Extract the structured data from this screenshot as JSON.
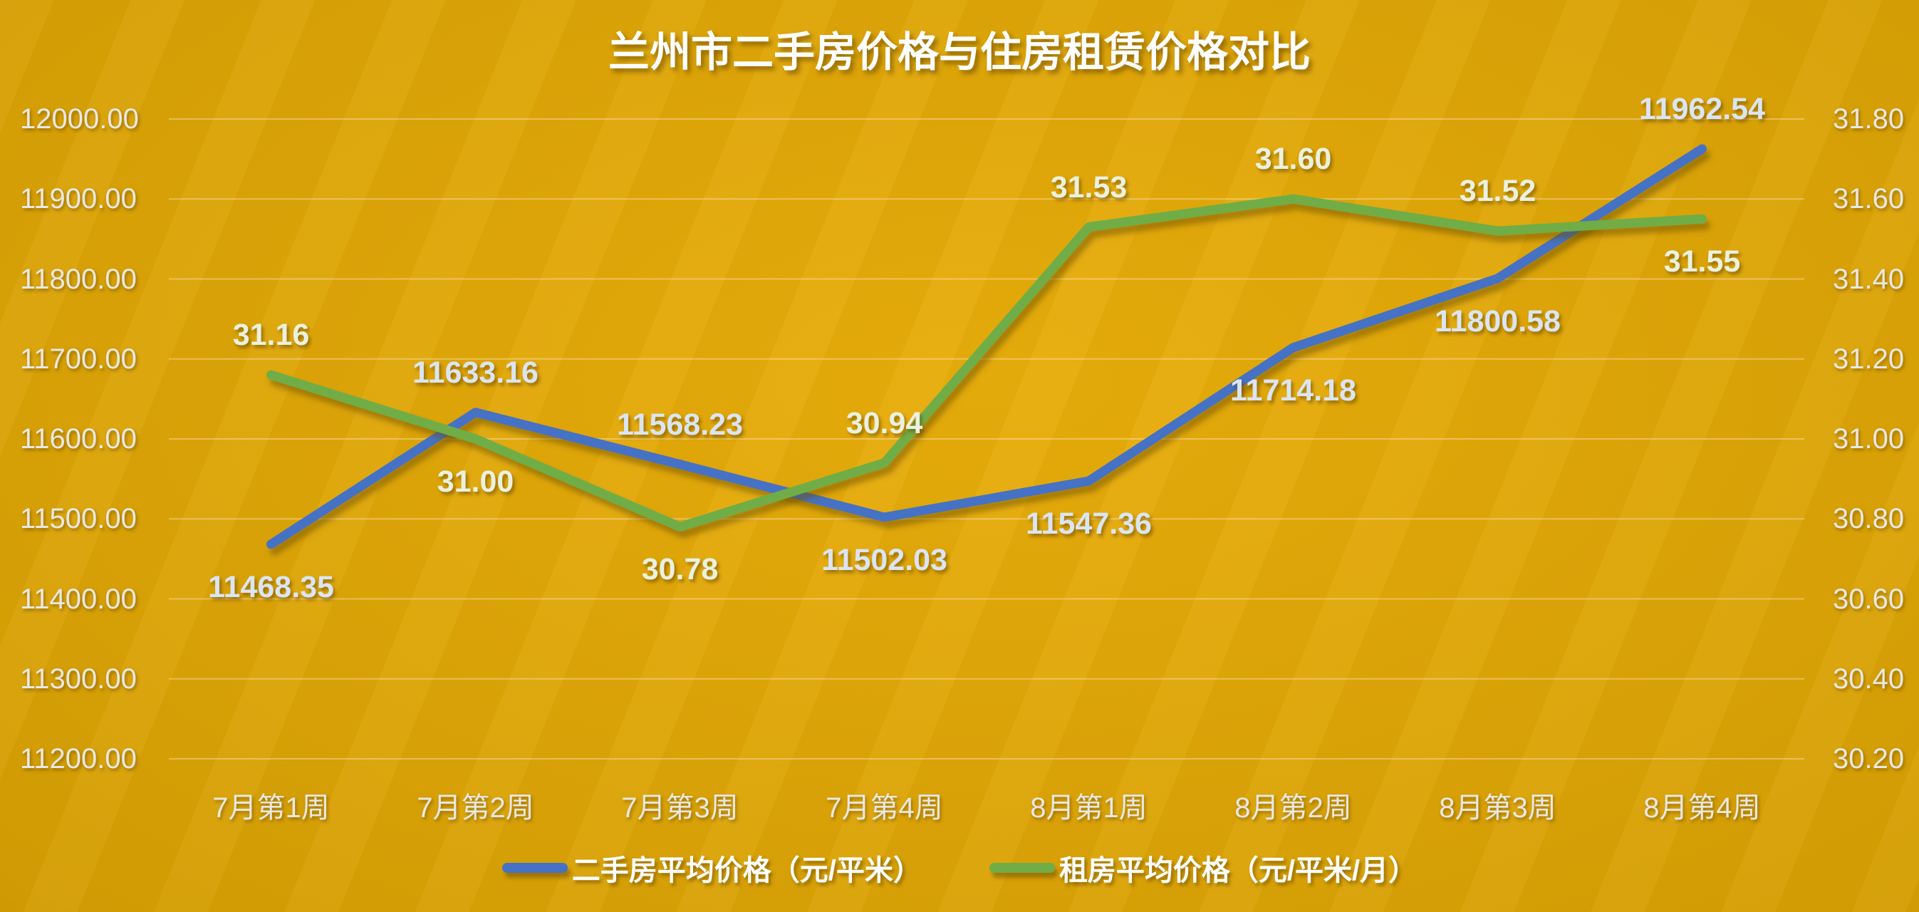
{
  "chart_data": {
    "type": "line",
    "title": "兰州市二手房价格与住房租赁价格对比",
    "categories": [
      "7月第1周",
      "7月第2周",
      "7月第3周",
      "7月第4周",
      "8月第1周",
      "8月第2周",
      "8月第3周",
      "8月第4周"
    ],
    "series": [
      {
        "id": "secondhand-price",
        "name": "二手房平均价格（元/平米）",
        "axis": "left",
        "color": "#4472c4",
        "label_color": "#dbe5f2",
        "values": [
          11468.35,
          11633.16,
          11568.23,
          11502.03,
          11547.36,
          11714.18,
          11800.58,
          11962.54
        ],
        "labels": [
          "11468.35",
          "11633.16",
          "11568.23",
          "11502.03",
          "11547.36",
          "11714.18",
          "11800.58",
          "11962.54"
        ],
        "label_placement": [
          "below",
          "above",
          "above",
          "below",
          "below",
          "below",
          "below",
          "above"
        ]
      },
      {
        "id": "rental-price",
        "name": "租房平均价格（元/平米/月）",
        "axis": "right",
        "color": "#70ad47",
        "label_color": "#ebf1de",
        "values": [
          31.16,
          31.0,
          30.78,
          30.94,
          31.53,
          31.6,
          31.52,
          31.55
        ],
        "labels": [
          "31.16",
          "31.00",
          "30.78",
          "30.94",
          "31.53",
          "31.60",
          "31.52",
          "31.55"
        ],
        "label_placement": [
          "above",
          "below",
          "below",
          "above",
          "above",
          "above",
          "above",
          "below"
        ]
      }
    ],
    "left_axis": {
      "min": 11200,
      "max": 12000,
      "step": 100,
      "ticks": [
        "12000.00",
        "11900.00",
        "11800.00",
        "11700.00",
        "11600.00",
        "11500.00",
        "11400.00",
        "11300.00",
        "11200.00"
      ]
    },
    "right_axis": {
      "min": 30.2,
      "max": 31.8,
      "step": 0.2,
      "ticks": [
        "31.80",
        "31.60",
        "31.40",
        "31.20",
        "31.00",
        "30.80",
        "30.60",
        "30.40",
        "30.20"
      ]
    },
    "grid": true,
    "legend_position": "bottom"
  },
  "colors": {
    "background_center": "#e8ad0b",
    "background_mid": "#d49e04",
    "background_edge": "#9d7900",
    "gridline": "rgba(255,255,255,0.32)",
    "axis_text": "#eae8e4",
    "title_text": "#ffffff",
    "series_blue": "#4472c4",
    "series_green": "#70ad47"
  }
}
